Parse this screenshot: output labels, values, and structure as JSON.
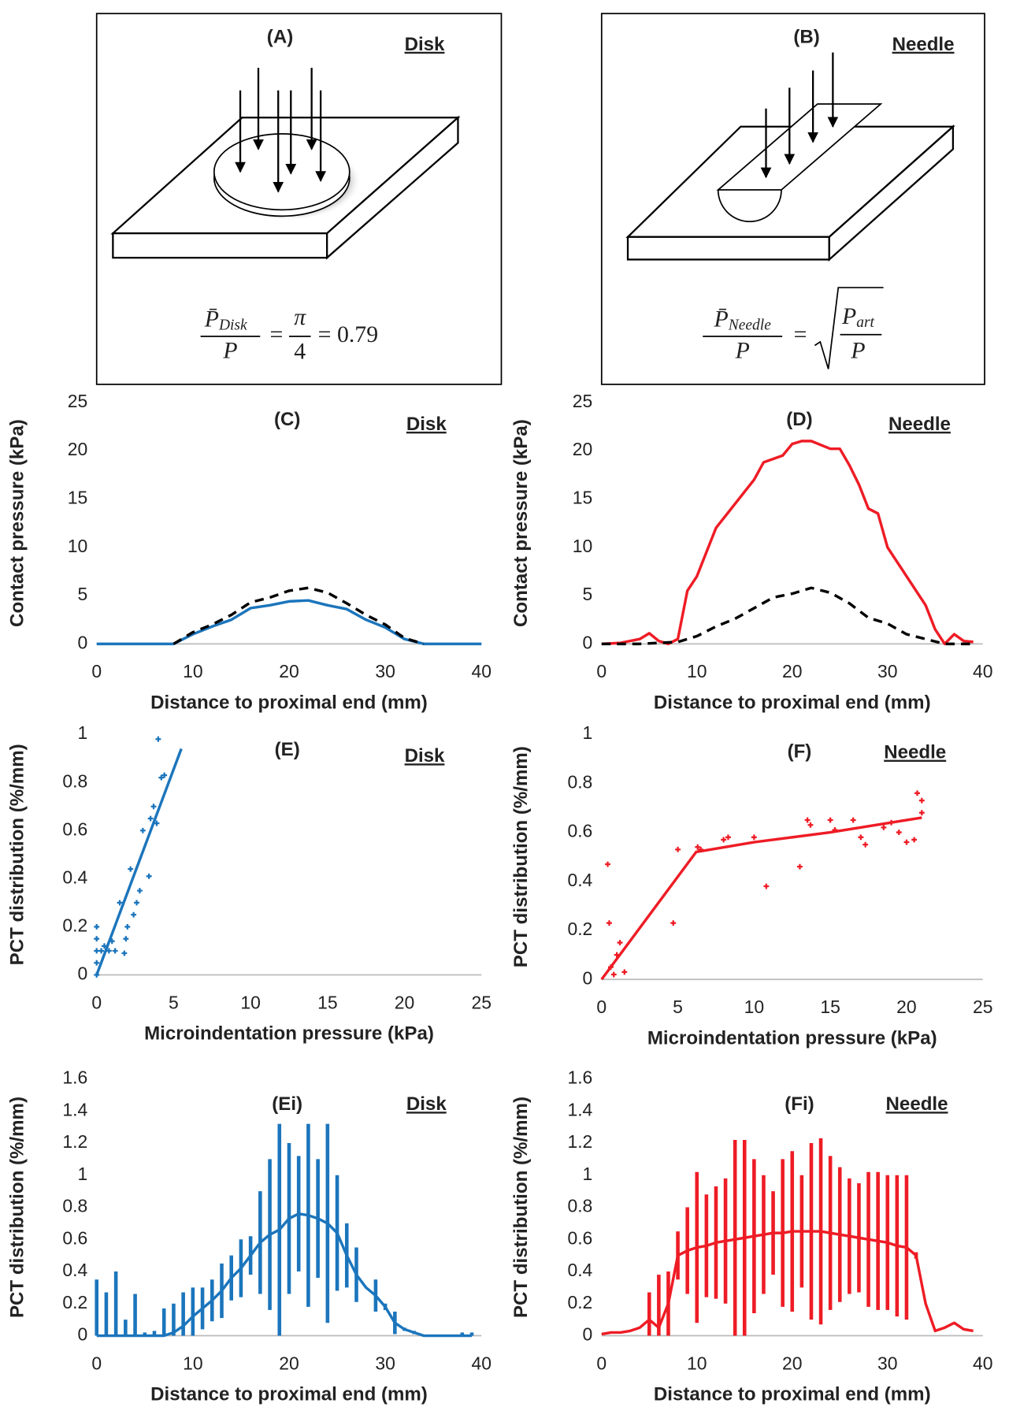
{
  "diagrams": [
    {
      "title": "(A)",
      "subtitle": "Disk",
      "equation": {
        "symbol": "P̄",
        "subscript": "Disk",
        "denominator": "P",
        "equals": "=",
        "rhs_numerator": "π",
        "rhs_denominator": "4",
        "result": "= 0.79"
      }
    },
    {
      "title": "(B)",
      "subtitle": "Needle",
      "equation": {
        "symbol": "P̄",
        "subscript": "Needle",
        "denominator": "P",
        "equals": "=",
        "root_symbol": "P",
        "root_subscript": "art",
        "root_denominator": "P"
      }
    }
  ],
  "chart_data": [
    {
      "type": "line",
      "title": "(C)",
      "subtitle": "Disk",
      "x_label": "Distance to proximal end (mm)",
      "y_label": "Contact pressure (kPa)",
      "xlim": [
        0,
        40
      ],
      "xticks": [
        0,
        10,
        20,
        30,
        40
      ],
      "ylim": [
        0,
        25
      ],
      "yticks": [
        0,
        5,
        10,
        15,
        20,
        25
      ],
      "series": [
        {
          "color": "#1b75bc",
          "line_style": "solid",
          "x": [
            0,
            2,
            4,
            6,
            8,
            10,
            12,
            14,
            16,
            18,
            20,
            22,
            24,
            26,
            28,
            30,
            32,
            34,
            36,
            38,
            40
          ],
          "values": [
            0,
            0,
            0,
            0,
            0,
            1,
            1.8,
            2.5,
            3.7,
            4,
            4.4,
            4.5,
            4,
            3.6,
            2.5,
            1.7,
            0.5,
            0,
            0,
            0,
            0
          ]
        },
        {
          "color": "#000000",
          "line_style": "dashed",
          "x": [
            8,
            10,
            12,
            14,
            16,
            18,
            20,
            22,
            24,
            26,
            28,
            30,
            32,
            34
          ],
          "values": [
            0,
            1.2,
            2,
            3,
            4.3,
            4.8,
            5.5,
            5.8,
            5.3,
            4.2,
            3,
            2,
            0.6,
            0
          ]
        }
      ]
    },
    {
      "type": "line",
      "title": "(D)",
      "subtitle": "Needle",
      "x_label": "Distance to proximal end (mm)",
      "y_label": "Contact pressure (kPa)",
      "xlim": [
        0,
        40
      ],
      "xticks": [
        0,
        10,
        20,
        30,
        40
      ],
      "ylim": [
        0,
        25
      ],
      "yticks": [
        0,
        5,
        10,
        15,
        20,
        25
      ],
      "series": [
        {
          "color": "#ee1c25",
          "line_style": "solid",
          "x": [
            0,
            2,
            4,
            5,
            6,
            7,
            8,
            9,
            10,
            12,
            14,
            16,
            17,
            19,
            20,
            21,
            22,
            24,
            25,
            26,
            27,
            28,
            29,
            30,
            32,
            34,
            35,
            36,
            37,
            38,
            39
          ],
          "values": [
            0,
            0.1,
            0.5,
            1.1,
            0.3,
            0,
            0.5,
            5.5,
            7,
            12,
            14.5,
            17,
            18.8,
            19.5,
            20.7,
            21,
            21,
            20.2,
            20.2,
            18.5,
            16.5,
            14,
            13.5,
            10,
            7,
            4,
            1.5,
            0,
            1,
            0.3,
            0.2
          ]
        },
        {
          "color": "#000000",
          "line_style": "dashed",
          "x": [
            0,
            4,
            8,
            10,
            12,
            14,
            16,
            18,
            20,
            22,
            24,
            26,
            28,
            30,
            32,
            34,
            36,
            39
          ],
          "values": [
            0,
            0,
            0.2,
            0.8,
            1.8,
            2.6,
            3.7,
            4.8,
            5.2,
            5.8,
            5.3,
            4.2,
            2.7,
            2.1,
            1,
            0.5,
            0,
            0
          ]
        }
      ]
    },
    {
      "type": "scatter",
      "title": "(E)",
      "subtitle": "Disk",
      "x_label": "Microindentation pressure (kPa)",
      "y_label": "PCT distribution (%/mm)",
      "xlim": [
        0,
        25
      ],
      "xticks": [
        0,
        5,
        10,
        15,
        20,
        25
      ],
      "ylim": [
        0,
        1
      ],
      "yticks": [
        0,
        0.2,
        0.4,
        0.6,
        0.8,
        1
      ],
      "series": [
        {
          "color": "#1b75bc",
          "line_style": "markers",
          "x": [
            0,
            0,
            0,
            0,
            0,
            0.3,
            0.5,
            0.8,
            1,
            1.2,
            1.5,
            1.8,
            1.9,
            2,
            2.2,
            2.4,
            2.6,
            2.8,
            3,
            3.4,
            3.5,
            3.7,
            4,
            4.2,
            4.4,
            3.9
          ],
          "values": [
            0,
            0.05,
            0.1,
            0.15,
            0.2,
            0.1,
            0.12,
            0.1,
            0.14,
            0.1,
            0.3,
            0.09,
            0.15,
            0.2,
            0.44,
            0.25,
            0.3,
            0.35,
            0.6,
            0.41,
            0.65,
            0.7,
            0.98,
            0.82,
            0.83,
            0.63
          ]
        },
        {
          "color": "#1b75bc",
          "line_style": "solid",
          "x": [
            0,
            5.5
          ],
          "values": [
            0,
            0.94
          ]
        }
      ]
    },
    {
      "type": "scatter",
      "title": "(F)",
      "subtitle": "Needle",
      "x_label": "Microindentation pressure (kPa)",
      "y_label": "PCT distribution (%/mm)",
      "xlim": [
        0,
        25
      ],
      "xticks": [
        0,
        5,
        10,
        15,
        20,
        25
      ],
      "ylim": [
        0,
        1
      ],
      "yticks": [
        0,
        0.2,
        0.4,
        0.6,
        0.8,
        1
      ],
      "series": [
        {
          "color": "#ee1c25",
          "line_style": "markers",
          "x": [
            0.4,
            0.5,
            0.6,
            0.8,
            1,
            1.2,
            1.5,
            4.7,
            5,
            6.3,
            6.5,
            8,
            8.3,
            10,
            10.8,
            13,
            13.5,
            13.7,
            15,
            15.3,
            16.5,
            17,
            17.3,
            18.5,
            19,
            19.5,
            20,
            20.5,
            20.7,
            21,
            21
          ],
          "values": [
            0.47,
            0.23,
            0.05,
            0.02,
            0.1,
            0.15,
            0.03,
            0.23,
            0.53,
            0.54,
            0.53,
            0.57,
            0.58,
            0.58,
            0.38,
            0.46,
            0.65,
            0.63,
            0.65,
            0.61,
            0.65,
            0.58,
            0.55,
            0.62,
            0.64,
            0.6,
            0.56,
            0.57,
            0.76,
            0.73,
            0.68
          ]
        },
        {
          "color": "#ee1c25",
          "line_style": "solid",
          "x": [
            0,
            6.2,
            10,
            15,
            21
          ],
          "values": [
            0,
            0.52,
            0.56,
            0.6,
            0.66
          ]
        }
      ]
    },
    {
      "type": "line",
      "title": "(Ei)",
      "subtitle": "Disk",
      "x_label": "Distance to proximal end (mm)",
      "y_label": "PCT distribution (%/mm)",
      "xlim": [
        0,
        40
      ],
      "xticks": [
        0,
        10,
        20,
        30,
        40
      ],
      "ylim": [
        0,
        1.6
      ],
      "yticks": [
        0,
        0.2,
        0.4,
        0.6,
        0.8,
        1,
        1.2,
        1.4,
        1.6
      ],
      "series": [
        {
          "color": "#1b75bc",
          "line_style": "solid",
          "x": [
            0,
            1,
            2,
            3,
            4,
            5,
            6,
            7,
            8,
            9,
            10,
            11,
            12,
            13,
            14,
            15,
            16,
            17,
            18,
            19,
            20,
            21,
            22,
            23,
            24,
            25,
            26,
            27,
            28,
            29,
            30,
            31,
            32,
            33,
            34,
            35,
            36,
            37,
            38,
            39
          ],
          "values": [
            0,
            0,
            0,
            0,
            0,
            0,
            0,
            0,
            0.02,
            0.06,
            0.12,
            0.17,
            0.22,
            0.28,
            0.36,
            0.42,
            0.5,
            0.58,
            0.63,
            0.66,
            0.73,
            0.76,
            0.75,
            0.73,
            0.7,
            0.64,
            0.5,
            0.38,
            0.3,
            0.25,
            0.18,
            0.08,
            0.04,
            0.02,
            0,
            0,
            0,
            0,
            0,
            0
          ],
          "errors": [
            0.35,
            0.27,
            0.4,
            0.1,
            0.26,
            0.02,
            0.03,
            0.17,
            0.18,
            0.21,
            0.18,
            0.13,
            0.13,
            0.17,
            0.14,
            0.18,
            0.12,
            0.32,
            0.47,
            0.66,
            0.47,
            0.36,
            0.57,
            0.37,
            0.62,
            0.36,
            0.2,
            0.17,
            0,
            0.1,
            0.02,
            0.07,
            0.01,
            0.01,
            0,
            0,
            0,
            0,
            0.02,
            0.02
          ]
        }
      ]
    },
    {
      "type": "line",
      "title": "(Fi)",
      "subtitle": "Needle",
      "x_label": "Distance to proximal end (mm)",
      "y_label": "PCT distribution (%/mm)",
      "xlim": [
        0,
        40
      ],
      "xticks": [
        0,
        10,
        20,
        30,
        40
      ],
      "ylim": [
        0,
        1.6
      ],
      "yticks": [
        0,
        0.2,
        0.4,
        0.6,
        0.8,
        1,
        1.2,
        1.4,
        1.6
      ],
      "series": [
        {
          "color": "#ee1c25",
          "line_style": "solid",
          "x": [
            0,
            1,
            2,
            3,
            4,
            5,
            6,
            7,
            8,
            9,
            10,
            11,
            12,
            13,
            14,
            15,
            16,
            17,
            18,
            19,
            20,
            21,
            22,
            23,
            24,
            25,
            26,
            27,
            28,
            29,
            30,
            31,
            32,
            33,
            34,
            35,
            36,
            37,
            38,
            39
          ],
          "values": [
            0.01,
            0.02,
            0.02,
            0.03,
            0.05,
            0.1,
            0.05,
            0.2,
            0.5,
            0.53,
            0.55,
            0.56,
            0.58,
            0.59,
            0.6,
            0.61,
            0.62,
            0.63,
            0.64,
            0.64,
            0.65,
            0.65,
            0.65,
            0.65,
            0.64,
            0.63,
            0.62,
            0.61,
            0.6,
            0.59,
            0.58,
            0.56,
            0.55,
            0.5,
            0.2,
            0.03,
            0.05,
            0.08,
            0.04,
            0.03
          ],
          "errors": [
            0,
            0,
            0,
            0,
            0,
            0.17,
            0.33,
            0.2,
            0.15,
            0.27,
            0.47,
            0.32,
            0.35,
            0.39,
            0.62,
            0.61,
            0.48,
            0.37,
            0.26,
            0.46,
            0.5,
            0.35,
            0.55,
            0.58,
            0.48,
            0.42,
            0.36,
            0.34,
            0.42,
            0.43,
            0.42,
            0.44,
            0.45,
            0.02,
            0,
            0,
            0,
            0,
            0,
            0
          ]
        }
      ]
    }
  ]
}
